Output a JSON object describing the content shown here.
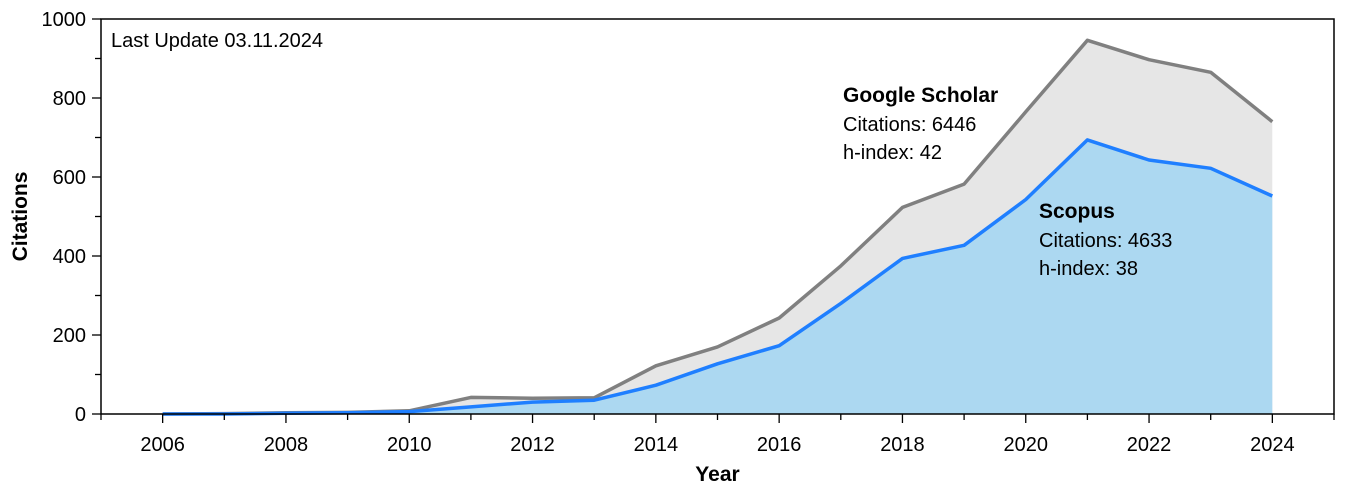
{
  "chart_data": {
    "type": "area",
    "title": "",
    "xlabel": "Year",
    "ylabel": "Citations",
    "note": "Last Update 03.11.2024",
    "xlim": [
      2005,
      2025
    ],
    "ylim": [
      0,
      1000
    ],
    "x_ticks": [
      2006,
      2008,
      2010,
      2012,
      2014,
      2016,
      2018,
      2020,
      2022,
      2024
    ],
    "y_ticks": [
      0,
      200,
      400,
      600,
      800,
      1000
    ],
    "grid": false,
    "x": [
      2006,
      2007,
      2008,
      2009,
      2010,
      2011,
      2012,
      2013,
      2014,
      2015,
      2016,
      2017,
      2018,
      2019,
      2020,
      2021,
      2022,
      2023,
      2024
    ],
    "series": [
      {
        "name": "Google Scholar",
        "values": [
          0,
          1,
          3,
          4,
          8,
          42,
          40,
          41,
          122,
          170,
          243,
          375,
          523,
          582,
          765,
          946,
          897,
          865,
          740
        ],
        "line_color": "#808080",
        "fill_color": "#e6e6e6",
        "annotation": {
          "title": "Google Scholar",
          "lines": [
            "Citations: 6446",
            "h-index: 42"
          ]
        }
      },
      {
        "name": "Scopus",
        "values": [
          0,
          0,
          2,
          3,
          6,
          18,
          30,
          35,
          73,
          127,
          173,
          280,
          394,
          427,
          543,
          694,
          643,
          622,
          552
        ],
        "line_color": "#1f7fff",
        "fill_color": "#acd8f1",
        "annotation": {
          "title": "Scopus",
          "lines": [
            "Citations: 4633",
            "h-index: 38"
          ]
        }
      }
    ]
  }
}
